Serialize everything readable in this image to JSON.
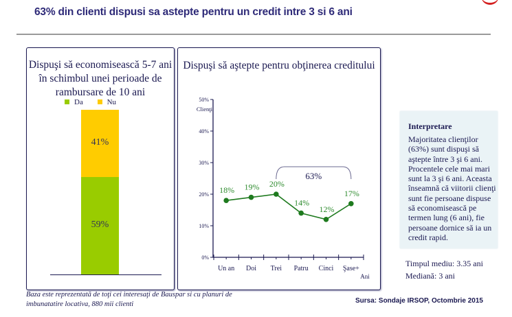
{
  "header": {
    "title": "63% din clienti dispusi sa astepte pentru un credit intre 3 si 6 ani"
  },
  "chart_data": [
    {
      "type": "bar",
      "stacked": true,
      "title_lines": [
        "Dispuşi să economisească 5-7 ani",
        "în schimbul unei perioade de",
        "rambursare de 10 ani"
      ],
      "legend": [
        {
          "name": "Da",
          "color": "#99cc00"
        },
        {
          "name": "Nu",
          "color": "#ffcc00"
        }
      ],
      "legend_position": "top",
      "categories": [
        ""
      ],
      "series": [
        {
          "name": "Da",
          "values": [
            59
          ],
          "label": "59%",
          "color": "#99cc00"
        },
        {
          "name": "Nu",
          "values": [
            41
          ],
          "label": "41%",
          "color": "#ffcc00"
        }
      ],
      "ylim": [
        0,
        100
      ]
    },
    {
      "type": "line",
      "title": "Dispuşi să aştepte pentru obţinerea creditului",
      "ylabel": "Clienţi",
      "xlabel": "Ani",
      "ylim": [
        0,
        50
      ],
      "yticks": [
        "0%",
        "10%",
        "20%",
        "30%",
        "40%",
        "50%"
      ],
      "ytick_values": [
        0,
        10,
        20,
        30,
        40,
        50
      ],
      "categories": [
        "Un an",
        "Doi",
        "Trei",
        "Patru",
        "Cinci",
        "Şase+"
      ],
      "series": [
        {
          "name": "Clienţi",
          "values": [
            18,
            19,
            20,
            14,
            12,
            17
          ],
          "labels": [
            "18%",
            "19%",
            "20%",
            "14%",
            "12%",
            "17%"
          ],
          "color": "#1e7a1e",
          "label_color": "#2e8b2e"
        }
      ],
      "annotation": {
        "text": "63%",
        "from_category": "Trei",
        "to_category": "Şase+"
      }
    }
  ],
  "interpretation": {
    "heading": "Interpretare",
    "body": "Majoritatea clienţilor (63%) sunt dispuşi să aştepte între 3 şi 6 ani. Procentele cele mai mari sunt la 3 şi 6 ani. Aceasta înseamnă că viitorii clienţi sunt fie persoane dispuse să economisească pe termen lung (6 ani), fie persoane dornice să ia un credit rapid."
  },
  "stats": {
    "mean": "Timpul mediu:  3.35 ani",
    "median": "Mediană: 3 ani"
  },
  "footer": {
    "base_note": "Baza este reprezentată de toţi cei interesaţi de Bauspar si cu planuri de imbunatatire locativa, 880 mii clienti",
    "source": "Sursa: Sondaje IRSOP, Octombrie 2015"
  }
}
